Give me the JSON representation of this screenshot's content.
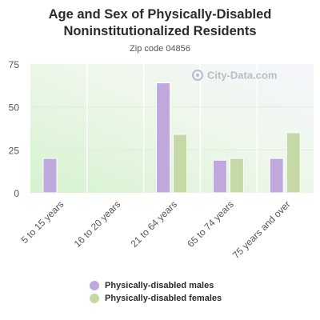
{
  "chart_data": {
    "type": "bar",
    "title_line1": "Age and Sex of Physically-Disabled",
    "title_line2": "Noninstitutionalized Residents",
    "subtitle": "Zip code 04856",
    "watermark": "City-Data.com",
    "categories": [
      "5 to 15 years",
      "16 to 20 years",
      "21 to 64 years",
      "65 to 74 years",
      "75 years and over"
    ],
    "series": [
      {
        "name": "Physically-disabled males",
        "values": [
          20,
          0,
          64,
          19,
          20
        ],
        "color": "#bea8dc"
      },
      {
        "name": "Physically-disabled females",
        "values": [
          0,
          0,
          34,
          20,
          35
        ],
        "color": "#c5d9a6"
      }
    ],
    "ylim": [
      0,
      75
    ],
    "yticks": [
      "0",
      "25",
      "50",
      "75"
    ],
    "grid": true,
    "legend_placement": "bottom"
  }
}
